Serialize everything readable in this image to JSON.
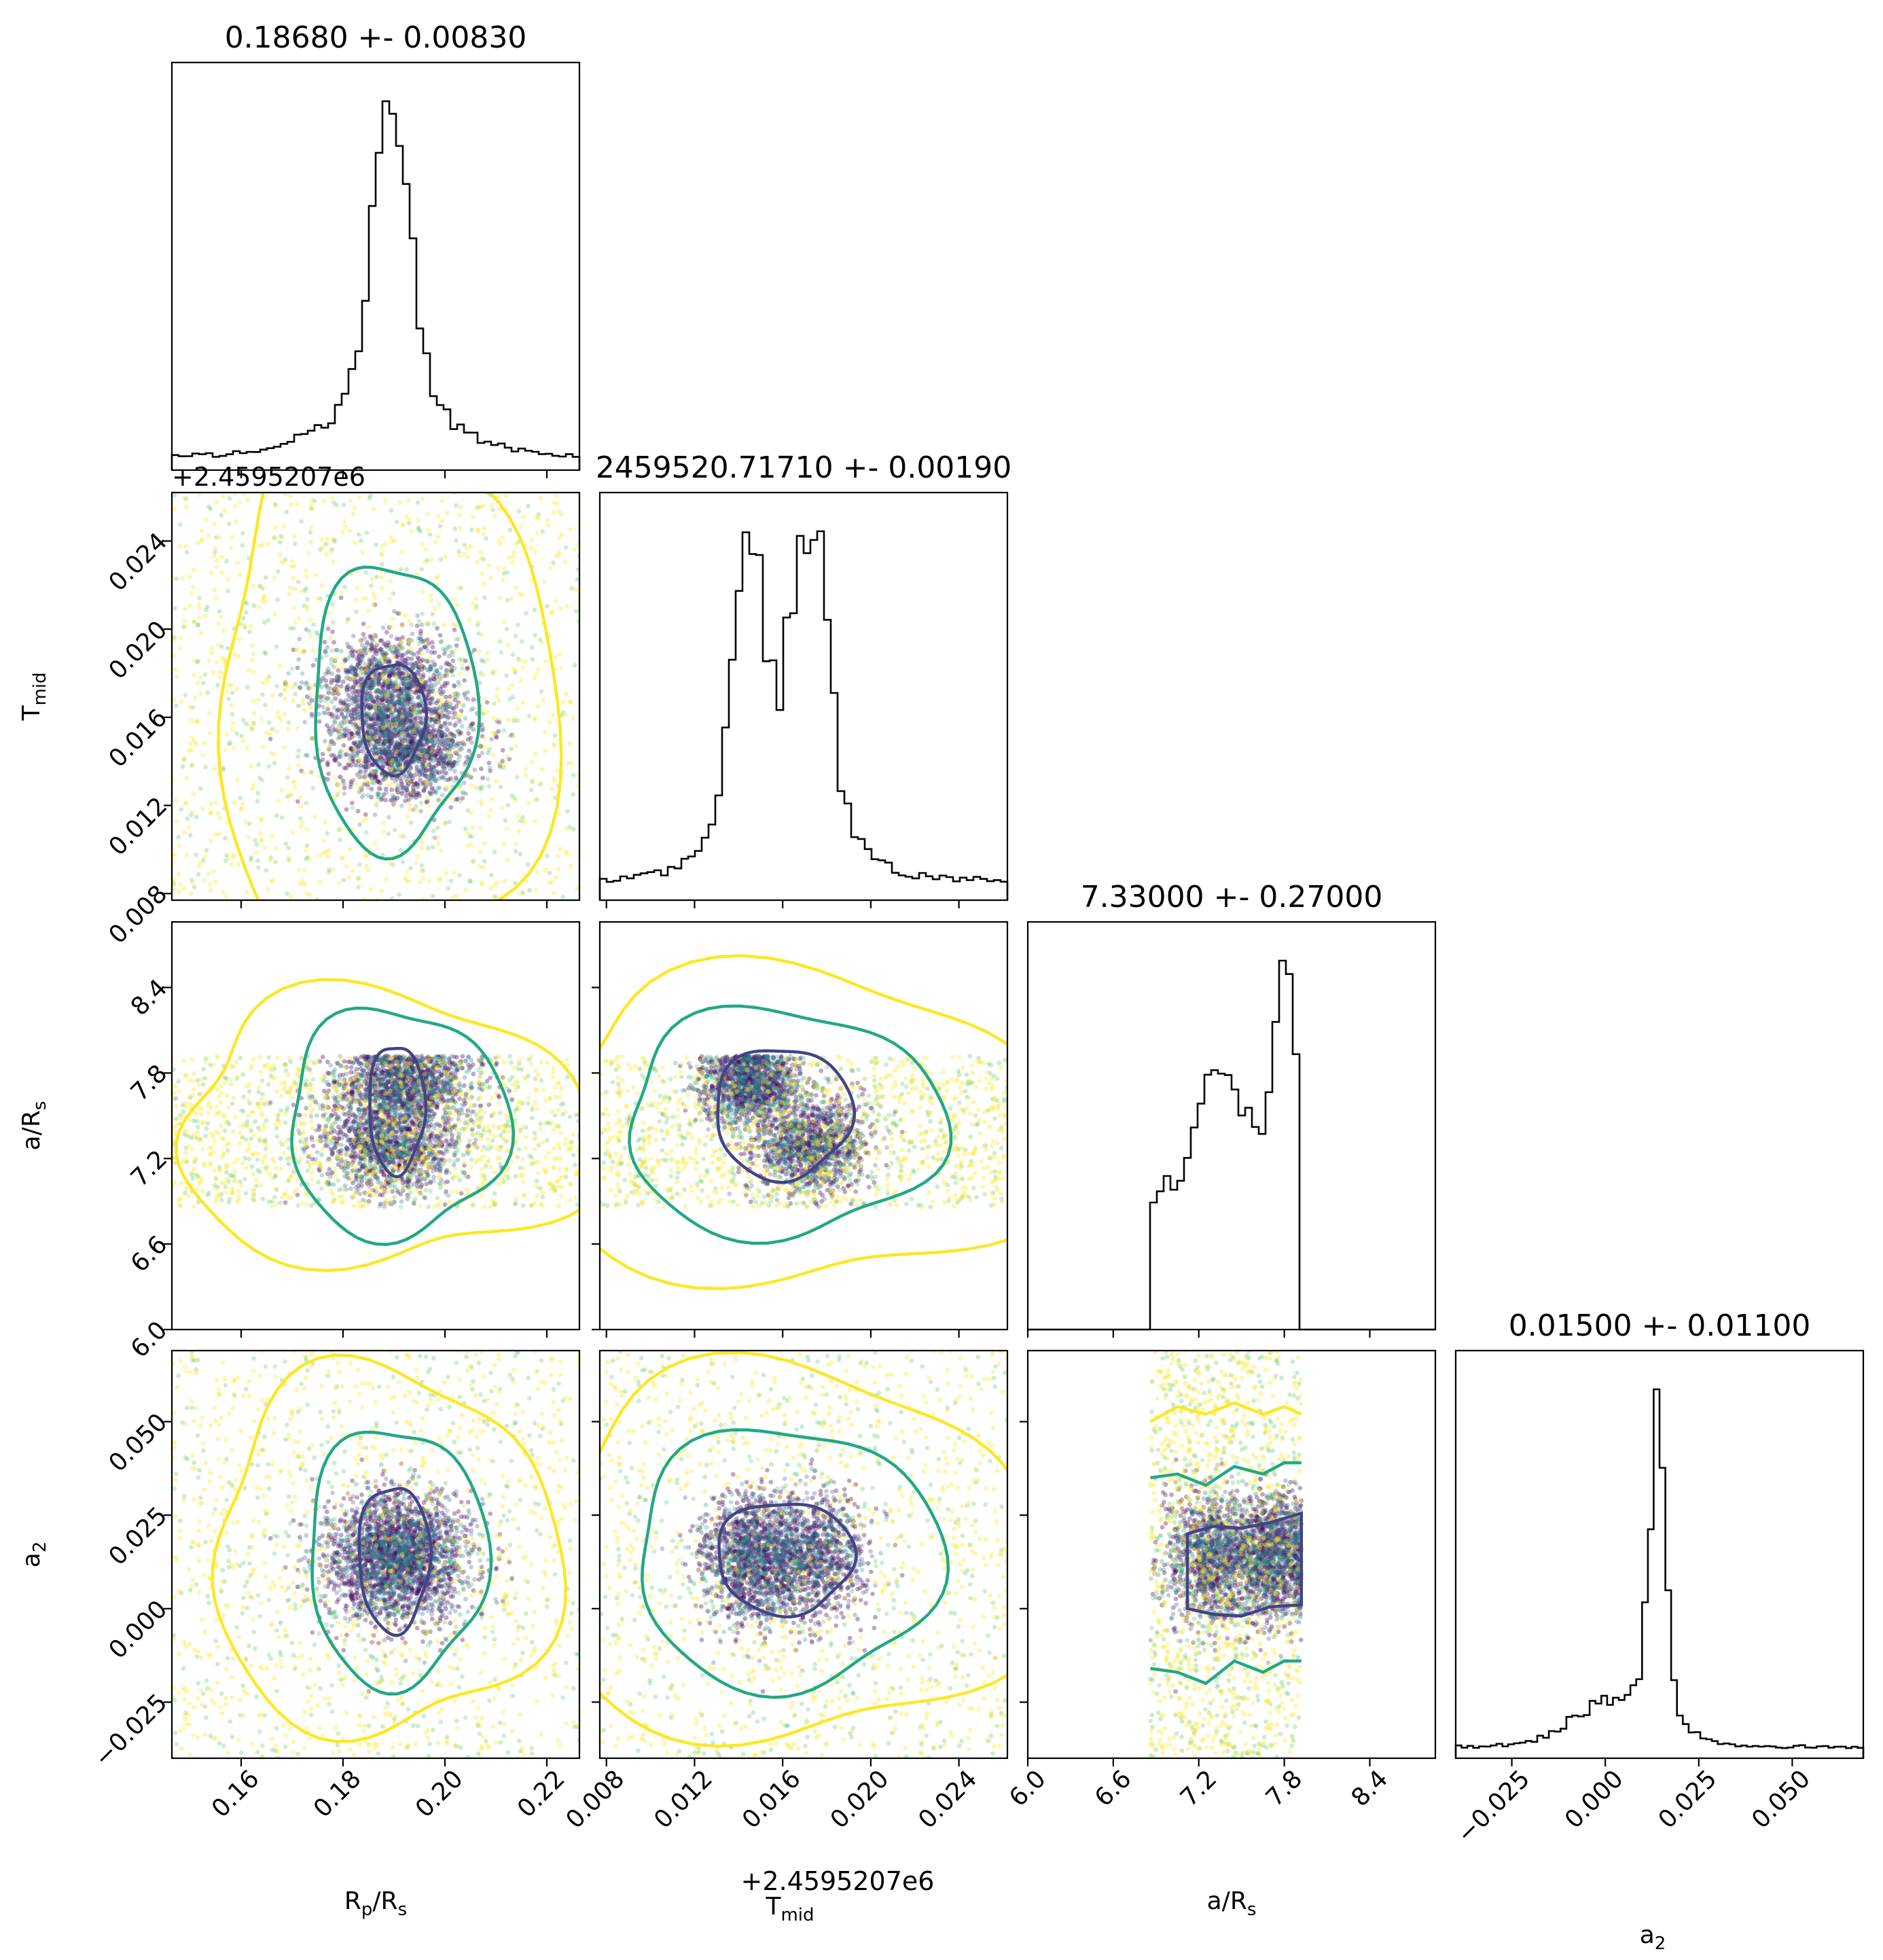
{
  "chart_data": {
    "type": "corner",
    "parameters": [
      {
        "key": "rp",
        "label_main": "R",
        "label_sub": "p",
        "label_tail": "/R",
        "label_sub2": "s",
        "range": [
          0.1464,
          0.2264
        ],
        "ticks": [
          "0.16",
          "0.18",
          "0.20",
          "0.22"
        ],
        "tick_values": [
          0.16,
          0.18,
          0.2,
          0.22
        ],
        "title": "0.18680 +- 0.00830",
        "offset": ""
      },
      {
        "key": "tmid",
        "label_main": "T",
        "label_sub": "mid",
        "label_tail": "",
        "label_sub2": "",
        "range": [
          0.0077,
          0.0262
        ],
        "ticks": [
          "0.008",
          "0.012",
          "0.016",
          "0.020",
          "0.024"
        ],
        "tick_values": [
          0.008,
          0.012,
          0.016,
          0.02,
          0.024
        ],
        "title": "2459520.71710 +- 0.00190",
        "offset": "+2.4595207e6"
      },
      {
        "key": "ars",
        "label_main": "a/R",
        "label_sub": "s",
        "label_tail": "",
        "label_sub2": "",
        "range": [
          6.0,
          8.86
        ],
        "ticks": [
          "6.0",
          "6.6",
          "7.2",
          "7.8",
          "8.4"
        ],
        "tick_values": [
          6.0,
          6.6,
          7.2,
          7.8,
          8.4
        ],
        "title": "7.33000 +- 0.27000",
        "offset": ""
      },
      {
        "key": "a2",
        "label_main": "a",
        "label_sub": "2",
        "label_tail": "",
        "label_sub2": "",
        "range": [
          -0.04,
          0.069
        ],
        "ticks": [
          "−0.025",
          "0.000",
          "0.025",
          "0.050"
        ],
        "tick_values": [
          -0.025,
          0.0,
          0.025,
          0.05
        ],
        "title": "0.01500 +- 0.01100",
        "offset": ""
      }
    ],
    "contour_levels": [
      "inner",
      "middle",
      "outer"
    ],
    "colors": {
      "inner": "#414487",
      "middle": "#22a884",
      "outer": "#fde725",
      "hist": "#000000"
    }
  }
}
